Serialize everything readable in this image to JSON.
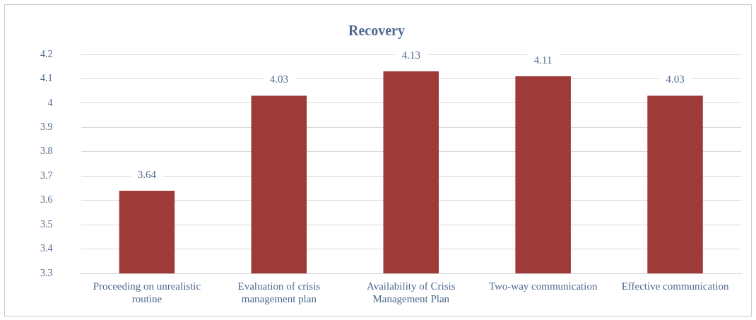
{
  "chart_data": {
    "type": "bar",
    "title": "Recovery",
    "categories": [
      "Proceeding on unrealistic routine",
      "Evaluation of crisis management plan",
      "Availability of Crisis Management Plan",
      "Two-way communication",
      "Effective communication"
    ],
    "values": [
      3.64,
      4.03,
      4.13,
      4.11,
      4.03
    ],
    "color": "#9e3a38",
    "ylim": [
      3.3,
      4.2
    ],
    "yticks": [
      3.3,
      3.4,
      3.5,
      3.6,
      3.7,
      3.8,
      3.9,
      4,
      4.1,
      4.2
    ],
    "grid": "y",
    "legend": false,
    "data_labels": true
  }
}
